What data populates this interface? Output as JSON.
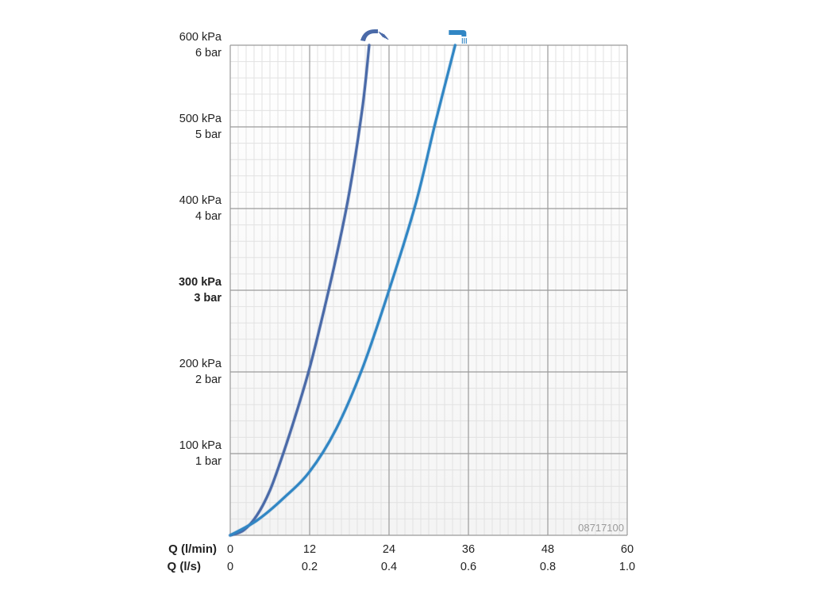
{
  "chart_data": {
    "type": "line",
    "code_label": "08717100",
    "y_ticks": [
      {
        "kpa": "600 kPa",
        "bar": "6 bar",
        "value": 600,
        "bold": false
      },
      {
        "kpa": "500 kPa",
        "bar": "5 bar",
        "value": 500,
        "bold": false
      },
      {
        "kpa": "400 kPa",
        "bar": "4 bar",
        "value": 400,
        "bold": false
      },
      {
        "kpa": "300 kPa",
        "bar": "3 bar",
        "value": 300,
        "bold": true
      },
      {
        "kpa": "200 kPa",
        "bar": "2 bar",
        "value": 200,
        "bold": false
      },
      {
        "kpa": "100 kPa",
        "bar": "1 bar",
        "value": 100,
        "bold": false
      }
    ],
    "x_axis_label_primary": "Q (l/min)",
    "x_axis_label_secondary": "Q (l/s)",
    "x_ticks_lmin": [
      "0",
      "12",
      "24",
      "36",
      "48",
      "60"
    ],
    "x_ticks_ls": [
      "0",
      "0.2",
      "0.4",
      "0.6",
      "0.8",
      "1.0"
    ],
    "xlim": [
      0,
      60
    ],
    "ylim": [
      0,
      600
    ],
    "grid": true,
    "series": [
      {
        "icon": "shower-head-spray-icon",
        "color": "#4a6aa8",
        "x": [
          0,
          2,
          4,
          6,
          8,
          10,
          12,
          14,
          16,
          18,
          20,
          21
        ],
        "y": [
          0,
          6,
          24,
          55,
          100,
          150,
          205,
          270,
          340,
          420,
          525,
          600
        ]
      },
      {
        "icon": "tub-spout-icon",
        "color": "#3186c4",
        "x": [
          0,
          4,
          8,
          12,
          16,
          20,
          24,
          28,
          31,
          34
        ],
        "y": [
          0,
          18,
          45,
          78,
          130,
          205,
          300,
          405,
          505,
          600
        ]
      }
    ]
  }
}
